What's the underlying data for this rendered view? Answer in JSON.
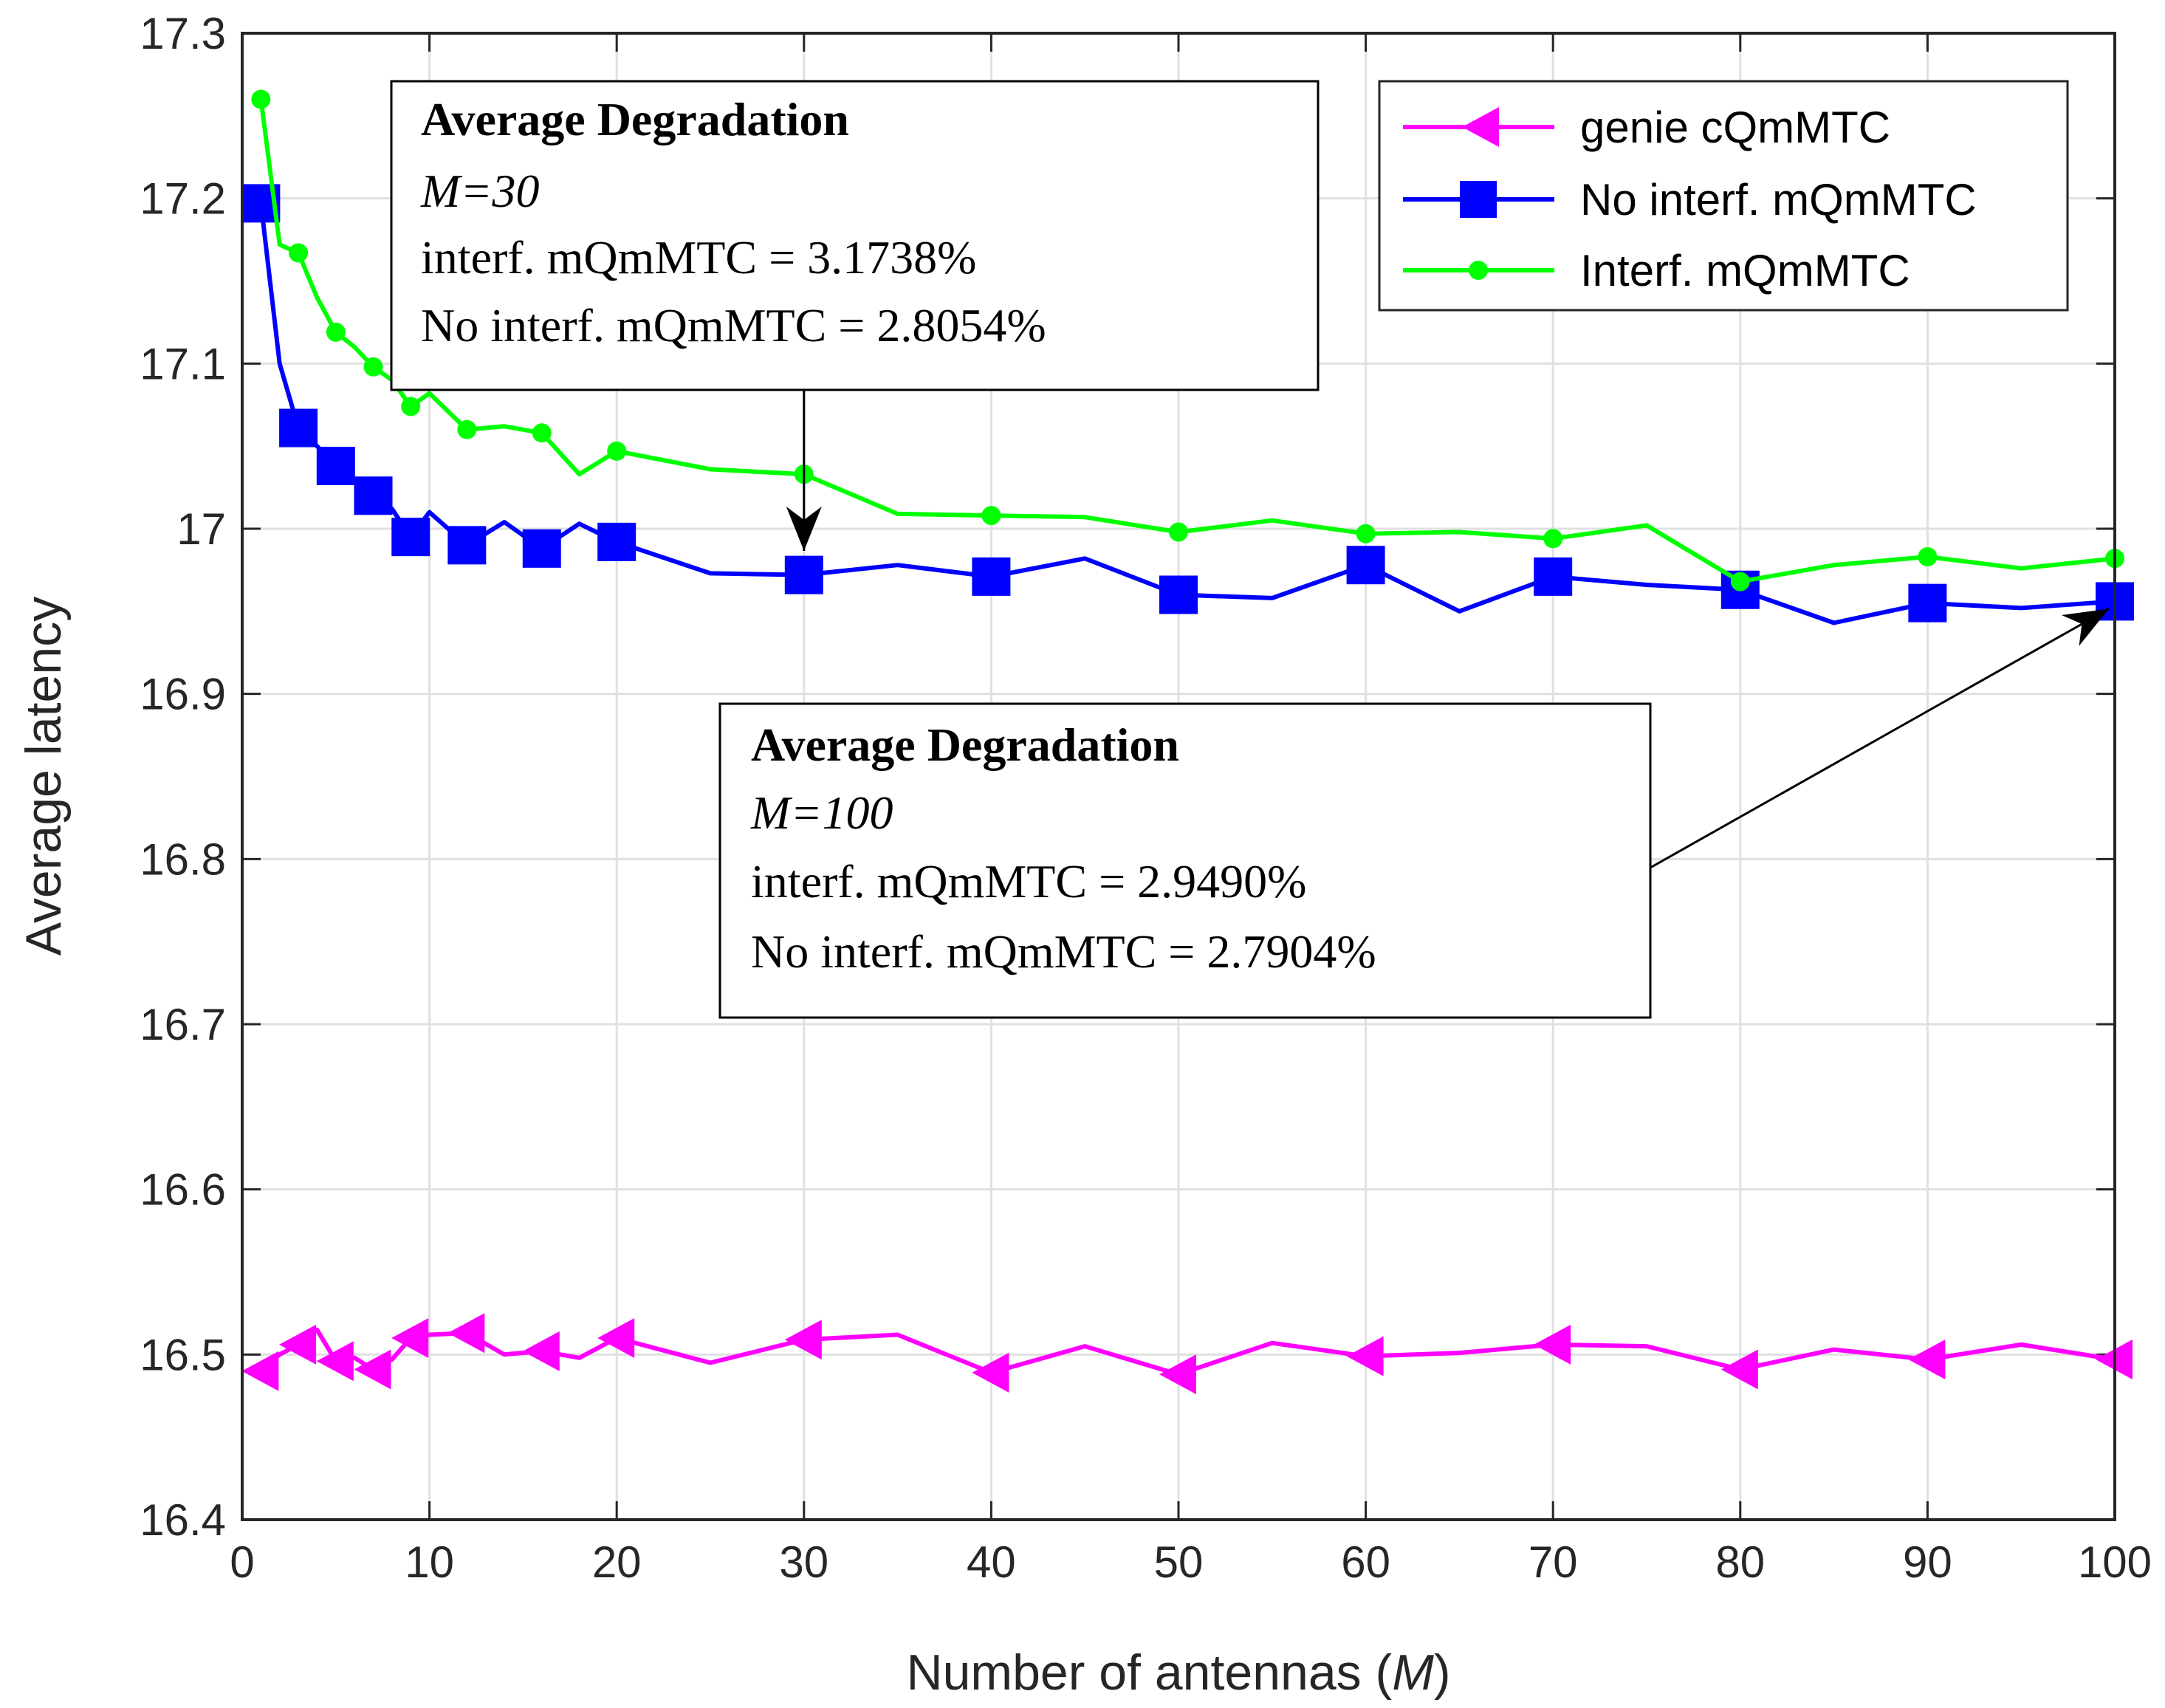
{
  "chart_data": {
    "type": "line",
    "xlabel": "Number of antennas (M)",
    "xlabel_main": "Number of antennas (",
    "xlabel_var": "M",
    "xlabel_end": ")",
    "ylabel": "Average latency",
    "xlim": [
      0,
      100
    ],
    "ylim": [
      16.4,
      17.3
    ],
    "xticks": [
      "0",
      "10",
      "20",
      "30",
      "40",
      "50",
      "60",
      "70",
      "80",
      "90",
      "100"
    ],
    "yticks": [
      "16.4",
      "16.5",
      "16.6",
      "16.7",
      "16.8",
      "16.9",
      "17",
      "17.1",
      "17.2",
      "17.3"
    ],
    "grid": true,
    "legend_position": "top-right",
    "series": [
      {
        "name": "genie cQmMTC",
        "color": "#ff00ff",
        "marker": "left-triangle",
        "x": [
          1,
          2,
          3,
          4,
          5,
          6,
          7,
          8,
          9,
          10,
          12,
          14,
          16,
          18,
          20,
          25,
          30,
          35,
          40,
          45,
          50,
          55,
          60,
          65,
          70,
          75,
          80,
          85,
          90,
          95,
          100
        ],
        "y": [
          16.49,
          16.5,
          16.506,
          16.515,
          16.496,
          16.498,
          16.491,
          16.497,
          16.51,
          16.512,
          16.513,
          16.5,
          16.502,
          16.498,
          16.51,
          16.495,
          16.509,
          16.512,
          16.489,
          16.505,
          16.488,
          16.507,
          16.499,
          16.501,
          16.506,
          16.505,
          16.491,
          16.503,
          16.497,
          16.506,
          16.497
        ],
        "marker_x": [
          1,
          3,
          5,
          7,
          9,
          12,
          16,
          20,
          30,
          40,
          50,
          60,
          70,
          80,
          90,
          100
        ]
      },
      {
        "name": "No interf. mQmMTC",
        "color": "#0000ff",
        "marker": "square",
        "x": [
          1,
          2,
          3,
          4,
          5,
          6,
          7,
          8,
          9,
          10,
          12,
          14,
          16,
          18,
          20,
          25,
          30,
          35,
          40,
          45,
          50,
          55,
          60,
          65,
          70,
          75,
          80,
          85,
          90,
          95,
          100
        ],
        "y": [
          17.197,
          17.1,
          17.061,
          17.05,
          17.038,
          17.028,
          17.02,
          17.012,
          16.995,
          17.01,
          16.99,
          17.004,
          16.988,
          17.003,
          16.992,
          16.973,
          16.972,
          16.978,
          16.971,
          16.982,
          16.96,
          16.958,
          16.978,
          16.95,
          16.971,
          16.966,
          16.963,
          16.943,
          16.955,
          16.952,
          16.956
        ],
        "marker_x": [
          1,
          3,
          5,
          7,
          9,
          12,
          16,
          20,
          30,
          40,
          50,
          60,
          70,
          80,
          90,
          100
        ]
      },
      {
        "name": "Interf. mQmMTC",
        "color": "#00ff00",
        "marker": "dot",
        "x": [
          1,
          2,
          3,
          4,
          5,
          6,
          7,
          8,
          9,
          10,
          12,
          14,
          16,
          18,
          20,
          25,
          30,
          35,
          40,
          45,
          50,
          55,
          60,
          65,
          70,
          75,
          80,
          85,
          90,
          95,
          100
        ],
        "y": [
          17.26,
          17.172,
          17.167,
          17.14,
          17.119,
          17.11,
          17.098,
          17.09,
          17.074,
          17.082,
          17.06,
          17.062,
          17.058,
          17.033,
          17.047,
          17.036,
          17.033,
          17.009,
          17.008,
          17.007,
          16.998,
          17.005,
          16.997,
          16.998,
          16.994,
          17.002,
          16.968,
          16.978,
          16.983,
          16.976,
          16.982
        ],
        "marker_x": [
          1,
          3,
          5,
          7,
          9,
          12,
          16,
          20,
          30,
          40,
          50,
          60,
          70,
          80,
          90,
          100
        ]
      }
    ],
    "annotations": [
      {
        "title": "Average Degradation",
        "subtitle": "M=30",
        "line1": "interf. mQmMTC = 3.1738%",
        "line2": "No interf. mQmMTC = 2.8054%",
        "arrow_target": [
          30,
          17.0
        ]
      },
      {
        "title": "Average Degradation",
        "subtitle": "M=100",
        "line1": "interf. mQmMTC = 2.9490%",
        "line2": "No interf. mQmMTC = 2.7904%",
        "arrow_target": [
          100,
          16.956
        ]
      }
    ]
  }
}
